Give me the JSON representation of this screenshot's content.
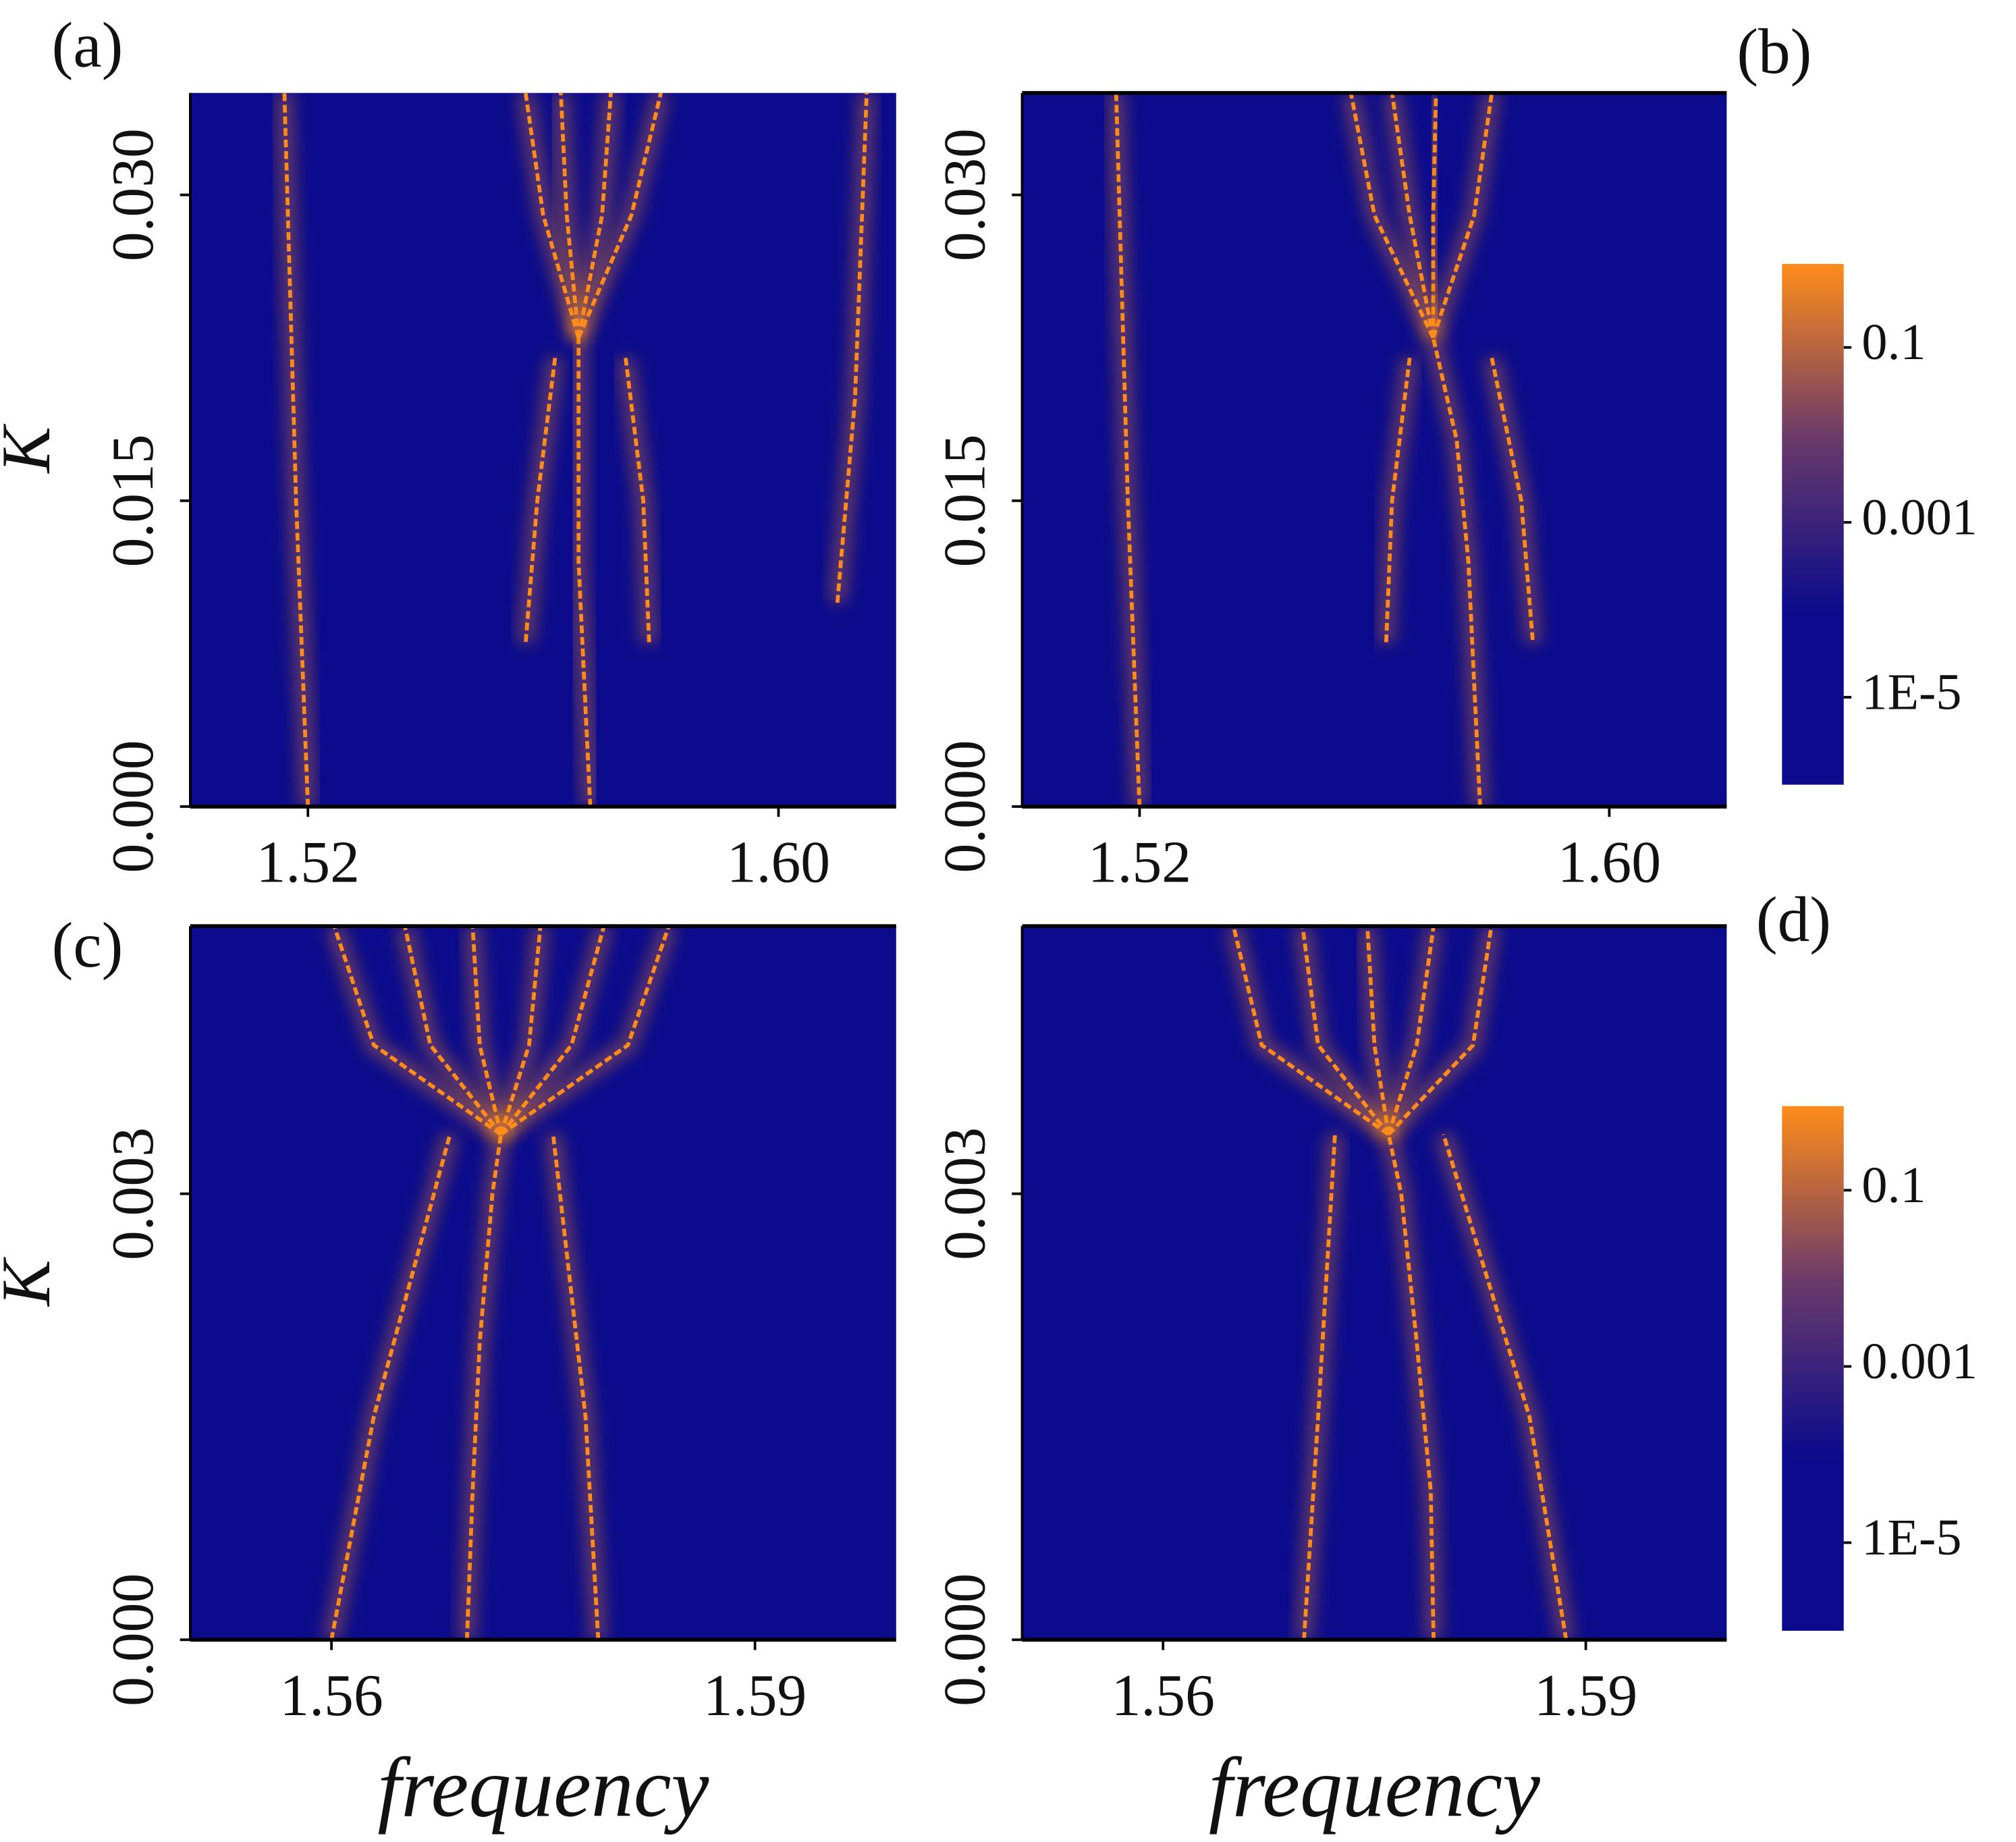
{
  "chart_data": [
    {
      "type": "heatmap",
      "panel_label": "(a)",
      "ylabel": "K",
      "xlim": [
        1.5,
        1.62
      ],
      "xticks": [
        1.52,
        {
          "value": 1.6,
          "label": "1.60"
        }
      ],
      "ylim": [
        0,
        0.035
      ],
      "yticks": [
        {
          "value": 0,
          "label": "0.000"
        },
        {
          "value": 0.015,
          "label": "0.015"
        },
        {
          "value": 0.03,
          "label": "0.030"
        }
      ],
      "background": "#0b0b8c",
      "trace_color": "#ff8c1a",
      "traces": [
        {
          "x": [
            1.568,
            1.567,
            1.566,
            1.566,
            1.566
          ],
          "y": [
            0,
            0.006,
            0.012,
            0.018,
            0.023
          ]
        },
        {
          "x": [
            1.566,
            1.564,
            1.563
          ],
          "y": [
            0.023,
            0.029,
            0.035
          ]
        },
        {
          "x": [
            1.566,
            1.57,
            1.5715
          ],
          "y": [
            0.023,
            0.029,
            0.035
          ]
        },
        {
          "x": [
            1.566,
            1.56,
            1.557
          ],
          "y": [
            0.023,
            0.029,
            0.035
          ]
        },
        {
          "x": [
            1.566,
            1.575,
            1.58
          ],
          "y": [
            0.023,
            0.029,
            0.035
          ]
        },
        {
          "x": [
            1.562,
            1.559,
            1.557
          ],
          "y": [
            0.022,
            0.015,
            0.008
          ]
        },
        {
          "x": [
            1.574,
            1.577,
            1.578
          ],
          "y": [
            0.022,
            0.015,
            0.008
          ]
        },
        {
          "x": [
            1.52,
            1.518,
            1.516
          ],
          "y": [
            0,
            0.015,
            0.035
          ]
        },
        {
          "x": [
            1.61,
            1.613,
            1.615
          ],
          "y": [
            0.01,
            0.02,
            0.035
          ]
        }
      ]
    },
    {
      "type": "heatmap",
      "panel_label": "(b)",
      "xlim": [
        1.5,
        1.62
      ],
      "xticks": [
        1.52,
        {
          "value": 1.6,
          "label": "1.60"
        }
      ],
      "ylim": [
        0,
        0.035
      ],
      "yticks": [
        {
          "value": 0,
          "label": "0.000"
        },
        {
          "value": 0.015,
          "label": "0.015"
        },
        {
          "value": 0.03,
          "label": "0.030"
        }
      ],
      "background": "#0b0b8c",
      "trace_color": "#ff8c1a",
      "traces": [
        {
          "x": [
            1.578,
            1.577,
            1.576,
            1.574,
            1.57
          ],
          "y": [
            0,
            0.006,
            0.012,
            0.018,
            0.023
          ]
        },
        {
          "x": [
            1.57,
            1.57,
            1.5705
          ],
          "y": [
            0.023,
            0.029,
            0.035
          ]
        },
        {
          "x": [
            1.57,
            1.566,
            1.563
          ],
          "y": [
            0.023,
            0.029,
            0.035
          ]
        },
        {
          "x": [
            1.57,
            1.577,
            1.58
          ],
          "y": [
            0.023,
            0.029,
            0.035
          ]
        },
        {
          "x": [
            1.57,
            1.56,
            1.556
          ],
          "y": [
            0.023,
            0.029,
            0.035
          ]
        },
        {
          "x": [
            1.566,
            1.563,
            1.562
          ],
          "y": [
            0.022,
            0.015,
            0.008
          ]
        },
        {
          "x": [
            1.58,
            1.585,
            1.587
          ],
          "y": [
            0.022,
            0.015,
            0.008
          ]
        },
        {
          "x": [
            1.52,
            1.518,
            1.516
          ],
          "y": [
            0,
            0.015,
            0.035
          ]
        }
      ],
      "colorbar": {
        "log": true,
        "lim": [
          1e-06,
          0.9
        ],
        "ticks": [
          {
            "value": 1e-05,
            "label": "1E-5"
          },
          0.001,
          0.1
        ],
        "colors": [
          "#0b0b8c",
          "#0b0b8c",
          "#6a3a6a",
          "#ff8c1a"
        ]
      }
    },
    {
      "type": "heatmap",
      "panel_label": "(c)",
      "ylabel": "K",
      "xlabel": "frequency",
      "xlim": [
        1.55,
        1.6
      ],
      "xticks": [
        1.56,
        1.59
      ],
      "ylim": [
        0,
        0.0048
      ],
      "yticks": [
        {
          "value": 0,
          "label": "0.000"
        },
        0.003
      ],
      "background": "#0b0b8c",
      "trace_color": "#ff8c1a",
      "traces": [
        {
          "x": [
            1.5696,
            1.57,
            1.5705,
            1.5714,
            1.572
          ],
          "y": [
            0,
            0.001,
            0.002,
            0.003,
            0.0034
          ]
        },
        {
          "x": [
            1.572,
            1.5705,
            1.57
          ],
          "y": [
            0.0034,
            0.004,
            0.0048
          ]
        },
        {
          "x": [
            1.572,
            1.574,
            1.5748
          ],
          "y": [
            0.0034,
            0.004,
            0.0048
          ]
        },
        {
          "x": [
            1.572,
            1.567,
            1.5652
          ],
          "y": [
            0.0034,
            0.004,
            0.0048
          ]
        },
        {
          "x": [
            1.572,
            1.577,
            1.5793
          ],
          "y": [
            0.0034,
            0.004,
            0.0048
          ]
        },
        {
          "x": [
            1.572,
            1.563,
            1.5602
          ],
          "y": [
            0.0034,
            0.004,
            0.0048
          ]
        },
        {
          "x": [
            1.572,
            1.581,
            1.5839
          ],
          "y": [
            0.0034,
            0.004,
            0.0048
          ]
        },
        {
          "x": [
            1.56,
            1.563,
            1.5684
          ],
          "y": [
            0,
            0.0015,
            0.0034
          ]
        },
        {
          "x": [
            1.5789,
            1.578,
            1.5757
          ],
          "y": [
            0,
            0.0015,
            0.0034
          ]
        }
      ]
    },
    {
      "type": "heatmap",
      "panel_label": "(d)",
      "xlabel": "frequency",
      "xlim": [
        1.55,
        1.6
      ],
      "xticks": [
        1.56,
        1.59
      ],
      "ylim": [
        0,
        0.0048
      ],
      "yticks": [
        {
          "value": 0,
          "label": "0.000"
        },
        0.003
      ],
      "background": "#0b0b8c",
      "trace_color": "#ff8c1a",
      "traces": [
        {
          "x": [
            1.5792,
            1.579,
            1.578,
            1.5769,
            1.576
          ],
          "y": [
            0,
            0.001,
            0.002,
            0.003,
            0.0034
          ]
        },
        {
          "x": [
            1.576,
            1.575,
            1.5745
          ],
          "y": [
            0.0034,
            0.004,
            0.0048
          ]
        },
        {
          "x": [
            1.576,
            1.571,
            1.5699
          ],
          "y": [
            0.0034,
            0.004,
            0.0048
          ]
        },
        {
          "x": [
            1.576,
            1.578,
            1.5792
          ],
          "y": [
            0.0034,
            0.004,
            0.0048
          ]
        },
        {
          "x": [
            1.576,
            1.567,
            1.565
          ],
          "y": [
            0.0034,
            0.004,
            0.0048
          ]
        },
        {
          "x": [
            1.576,
            1.582,
            1.5833
          ],
          "y": [
            0.0034,
            0.004,
            0.0048
          ]
        },
        {
          "x": [
            1.57,
            1.571,
            1.5722
          ],
          "y": [
            0,
            0.0015,
            0.0034
          ]
        },
        {
          "x": [
            1.5886,
            1.586,
            1.5799
          ],
          "y": [
            0,
            0.0015,
            0.0034
          ]
        }
      ],
      "colorbar": {
        "log": true,
        "lim": [
          1e-06,
          0.9
        ],
        "ticks": [
          {
            "value": 1e-05,
            "label": "1E-5"
          },
          0.001,
          0.1
        ],
        "colors": [
          "#0b0b8c",
          "#0b0b8c",
          "#6a3a6a",
          "#ff8c1a"
        ]
      }
    }
  ]
}
